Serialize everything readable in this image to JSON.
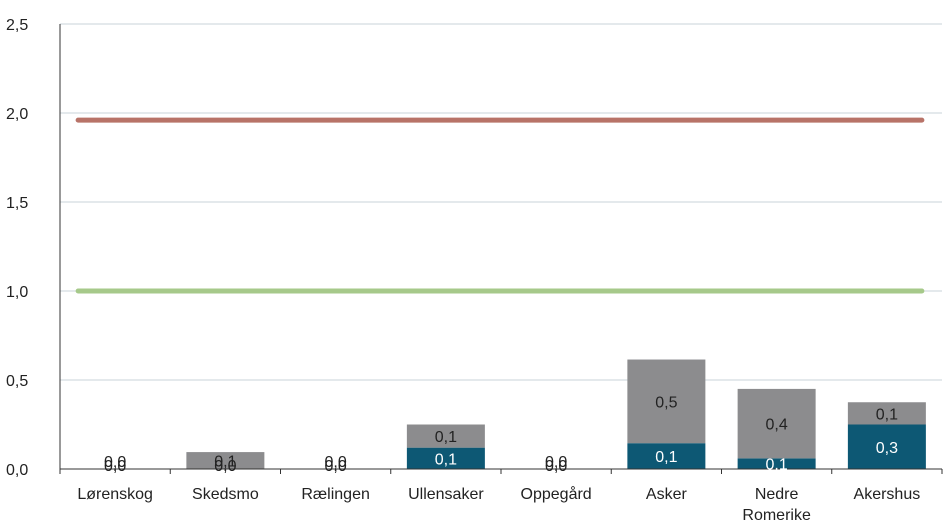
{
  "chart_data": {
    "type": "bar",
    "stacked": true,
    "title": "",
    "xlabel": "",
    "ylabel": "",
    "ylim": [
      0,
      2.5
    ],
    "y_ticks": [
      "0,0",
      "0,5",
      "1,0",
      "1,5",
      "2,0",
      "2,5"
    ],
    "y_tick_values": [
      0,
      0.5,
      1.0,
      1.5,
      2.0,
      2.5
    ],
    "grid": true,
    "legend": "none",
    "categories": [
      "Lørenskog",
      "Skedsmo",
      "Rælingen",
      "Ullensaker",
      "Oppegård",
      "Asker",
      [
        "Nedre",
        "Romerike"
      ],
      "Akershus"
    ],
    "series": [
      {
        "color": "#0d5874",
        "values": [
          0.0,
          0.0,
          0.0,
          0.12,
          0.0,
          0.145,
          0.06,
          0.25
        ],
        "labels": [
          "0,0",
          "0,0",
          "0,0",
          "0,1",
          "0,0",
          "0,1",
          "0,1",
          "0,3"
        ]
      },
      {
        "color": "#8c8c8e",
        "values": [
          0.0,
          0.095,
          0.0,
          0.13,
          0.0,
          0.47,
          0.39,
          0.125
        ],
        "labels": [
          "0,0",
          "0,1",
          "0,0",
          "0,1",
          "0,0",
          "0,5",
          "0,4",
          "0,1"
        ]
      }
    ],
    "reference_lines": [
      {
        "value": 1.96,
        "color": "#b87368"
      },
      {
        "value": 1.0,
        "color": "#a6c98a"
      }
    ],
    "gridline_color": "#c9d3da",
    "axis_color": "#333333"
  }
}
